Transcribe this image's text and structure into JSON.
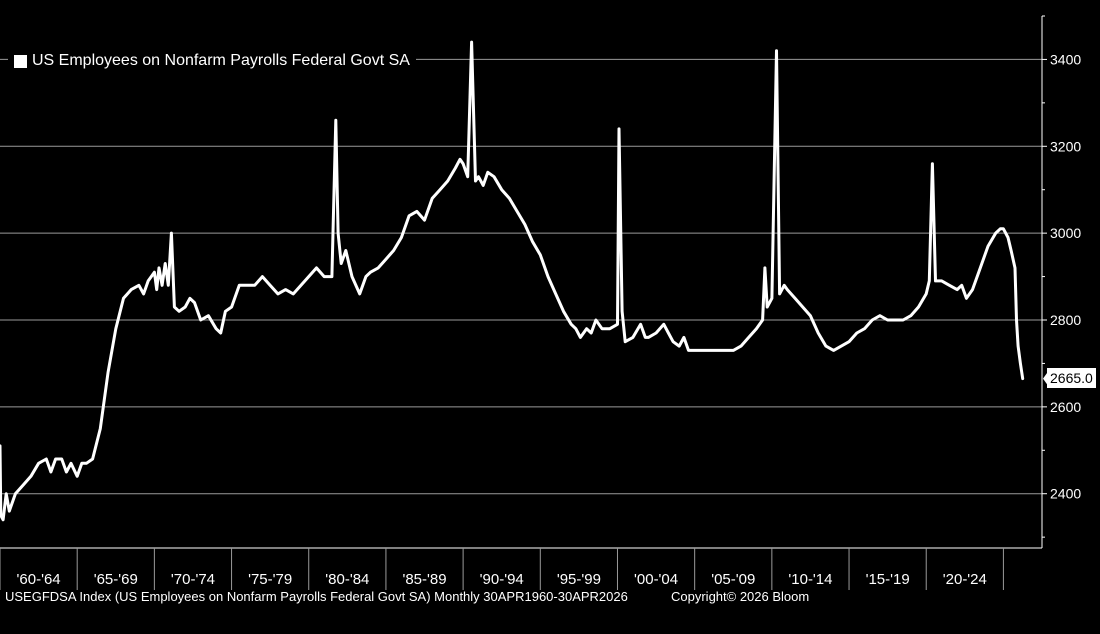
{
  "chart_data": {
    "type": "line",
    "title": "",
    "series": [
      {
        "name": "US Employees on Nonfarm Payrolls Federal Govt SA",
        "color": "#ffffff",
        "points": [
          [
            1960.0,
            2510
          ],
          [
            1960.05,
            2350
          ],
          [
            1960.2,
            2340
          ],
          [
            1960.4,
            2400
          ],
          [
            1960.6,
            2360
          ],
          [
            1961.0,
            2400
          ],
          [
            1961.5,
            2420
          ],
          [
            1962.0,
            2440
          ],
          [
            1962.5,
            2470
          ],
          [
            1963.0,
            2480
          ],
          [
            1963.3,
            2450
          ],
          [
            1963.6,
            2480
          ],
          [
            1964.0,
            2480
          ],
          [
            1964.3,
            2450
          ],
          [
            1964.6,
            2470
          ],
          [
            1965.0,
            2440
          ],
          [
            1965.3,
            2470
          ],
          [
            1965.6,
            2470
          ],
          [
            1966.0,
            2480
          ],
          [
            1966.5,
            2550
          ],
          [
            1967.0,
            2680
          ],
          [
            1967.5,
            2780
          ],
          [
            1968.0,
            2850
          ],
          [
            1968.5,
            2870
          ],
          [
            1969.0,
            2880
          ],
          [
            1969.3,
            2860
          ],
          [
            1969.6,
            2890
          ],
          [
            1970.0,
            2910
          ],
          [
            1970.15,
            2870
          ],
          [
            1970.3,
            2920
          ],
          [
            1970.5,
            2880
          ],
          [
            1970.7,
            2930
          ],
          [
            1970.9,
            2880
          ],
          [
            1971.1,
            3000
          ],
          [
            1971.3,
            2830
          ],
          [
            1971.6,
            2820
          ],
          [
            1972.0,
            2830
          ],
          [
            1972.3,
            2850
          ],
          [
            1972.6,
            2840
          ],
          [
            1973.0,
            2800
          ],
          [
            1973.5,
            2810
          ],
          [
            1974.0,
            2780
          ],
          [
            1974.3,
            2770
          ],
          [
            1974.6,
            2820
          ],
          [
            1975.0,
            2830
          ],
          [
            1975.5,
            2880
          ],
          [
            1976.0,
            2880
          ],
          [
            1976.5,
            2880
          ],
          [
            1977.0,
            2900
          ],
          [
            1977.5,
            2880
          ],
          [
            1978.0,
            2860
          ],
          [
            1978.5,
            2870
          ],
          [
            1979.0,
            2860
          ],
          [
            1979.5,
            2880
          ],
          [
            1980.0,
            2900
          ],
          [
            1980.5,
            2920
          ],
          [
            1981.0,
            2900
          ],
          [
            1981.5,
            2900
          ],
          [
            1981.75,
            3260
          ],
          [
            1981.9,
            3000
          ],
          [
            1982.1,
            2930
          ],
          [
            1982.4,
            2960
          ],
          [
            1982.8,
            2900
          ],
          [
            1983.3,
            2860
          ],
          [
            1983.7,
            2900
          ],
          [
            1984.0,
            2910
          ],
          [
            1984.5,
            2920
          ],
          [
            1985.0,
            2940
          ],
          [
            1985.5,
            2960
          ],
          [
            1986.0,
            2990
          ],
          [
            1986.5,
            3040
          ],
          [
            1987.0,
            3050
          ],
          [
            1987.5,
            3030
          ],
          [
            1988.0,
            3080
          ],
          [
            1988.5,
            3100
          ],
          [
            1989.0,
            3120
          ],
          [
            1989.5,
            3150
          ],
          [
            1989.8,
            3170
          ],
          [
            1990.0,
            3160
          ],
          [
            1990.3,
            3130
          ],
          [
            1990.55,
            3440
          ],
          [
            1990.8,
            3120
          ],
          [
            1991.0,
            3130
          ],
          [
            1991.3,
            3110
          ],
          [
            1991.6,
            3140
          ],
          [
            1992.0,
            3130
          ],
          [
            1992.5,
            3100
          ],
          [
            1993.0,
            3080
          ],
          [
            1993.5,
            3050
          ],
          [
            1994.0,
            3020
          ],
          [
            1994.5,
            2980
          ],
          [
            1995.0,
            2950
          ],
          [
            1995.5,
            2900
          ],
          [
            1996.0,
            2860
          ],
          [
            1996.5,
            2820
          ],
          [
            1997.0,
            2790
          ],
          [
            1997.3,
            2780
          ],
          [
            1997.6,
            2760
          ],
          [
            1998.0,
            2780
          ],
          [
            1998.3,
            2770
          ],
          [
            1998.6,
            2800
          ],
          [
            1999.0,
            2780
          ],
          [
            1999.5,
            2780
          ],
          [
            2000.0,
            2790
          ],
          [
            2000.1,
            3240
          ],
          [
            2000.3,
            2820
          ],
          [
            2000.5,
            2750
          ],
          [
            2001.0,
            2760
          ],
          [
            2001.5,
            2790
          ],
          [
            2001.8,
            2760
          ],
          [
            2002.0,
            2760
          ],
          [
            2002.5,
            2770
          ],
          [
            2003.0,
            2790
          ],
          [
            2003.3,
            2770
          ],
          [
            2003.6,
            2750
          ],
          [
            2004.0,
            2740
          ],
          [
            2004.3,
            2760
          ],
          [
            2004.6,
            2730
          ],
          [
            2005.0,
            2730
          ],
          [
            2005.5,
            2730
          ],
          [
            2006.0,
            2730
          ],
          [
            2006.5,
            2730
          ],
          [
            2007.0,
            2730
          ],
          [
            2007.5,
            2730
          ],
          [
            2008.0,
            2740
          ],
          [
            2008.5,
            2760
          ],
          [
            2009.0,
            2780
          ],
          [
            2009.4,
            2800
          ],
          [
            2009.55,
            2920
          ],
          [
            2009.7,
            2830
          ],
          [
            2010.0,
            2850
          ],
          [
            2010.3,
            3420
          ],
          [
            2010.5,
            2860
          ],
          [
            2010.8,
            2880
          ],
          [
            2011.0,
            2870
          ],
          [
            2011.5,
            2850
          ],
          [
            2012.0,
            2830
          ],
          [
            2012.5,
            2810
          ],
          [
            2013.0,
            2770
          ],
          [
            2013.5,
            2740
          ],
          [
            2014.0,
            2730
          ],
          [
            2014.5,
            2740
          ],
          [
            2015.0,
            2750
          ],
          [
            2015.5,
            2770
          ],
          [
            2016.0,
            2780
          ],
          [
            2016.5,
            2800
          ],
          [
            2017.0,
            2810
          ],
          [
            2017.5,
            2800
          ],
          [
            2018.0,
            2800
          ],
          [
            2018.5,
            2800
          ],
          [
            2019.0,
            2810
          ],
          [
            2019.5,
            2830
          ],
          [
            2020.0,
            2860
          ],
          [
            2020.2,
            2890
          ],
          [
            2020.4,
            3160
          ],
          [
            2020.6,
            2890
          ],
          [
            2021.0,
            2890
          ],
          [
            2021.5,
            2880
          ],
          [
            2022.0,
            2870
          ],
          [
            2022.3,
            2880
          ],
          [
            2022.6,
            2850
          ],
          [
            2023.0,
            2870
          ],
          [
            2023.5,
            2920
          ],
          [
            2024.0,
            2970
          ],
          [
            2024.5,
            3000
          ],
          [
            2024.8,
            3010
          ],
          [
            2025.0,
            3010
          ],
          [
            2025.3,
            2990
          ],
          [
            2025.5,
            2960
          ],
          [
            2025.75,
            2920
          ],
          [
            2025.85,
            2800
          ],
          [
            2025.95,
            2740
          ],
          [
            2026.1,
            2700
          ],
          [
            2026.25,
            2665
          ]
        ]
      }
    ],
    "x_tick_labels": [
      "'60-'64",
      "'65-'69",
      "'70-'74",
      "'75-'79",
      "'80-'84",
      "'85-'89",
      "'90-'94",
      "'95-'99",
      "'00-'04",
      "'05-'09",
      "'10-'14",
      "'15-'19",
      "'20-'24"
    ],
    "x_bands": [
      1960,
      1965,
      1970,
      1975,
      1980,
      1985,
      1990,
      1995,
      2000,
      2005,
      2010,
      2015,
      2020,
      2025
    ],
    "xlim": [
      1960,
      2027.5
    ],
    "y_ticks": [
      2400,
      2600,
      2800,
      3000,
      3200,
      3400
    ],
    "ylim": [
      2275,
      3500
    ],
    "grid": true,
    "y_axis_side": "right",
    "legend_placement": "top-left",
    "last_value": 2665.0,
    "last_value_label": "2665.0",
    "background": "#000000",
    "line_color": "#ffffff",
    "grid_color": "#9a9a9a"
  },
  "legend": {
    "label": "US Employees on Nonfarm Payrolls Federal Govt SA"
  },
  "footer": {
    "left": "USEGFDSA Index (US Employees on Nonfarm Payrolls Federal Govt SA) Monthly 30APR1960-30APR2026",
    "right": "Copyright© 2026 Bloom"
  }
}
